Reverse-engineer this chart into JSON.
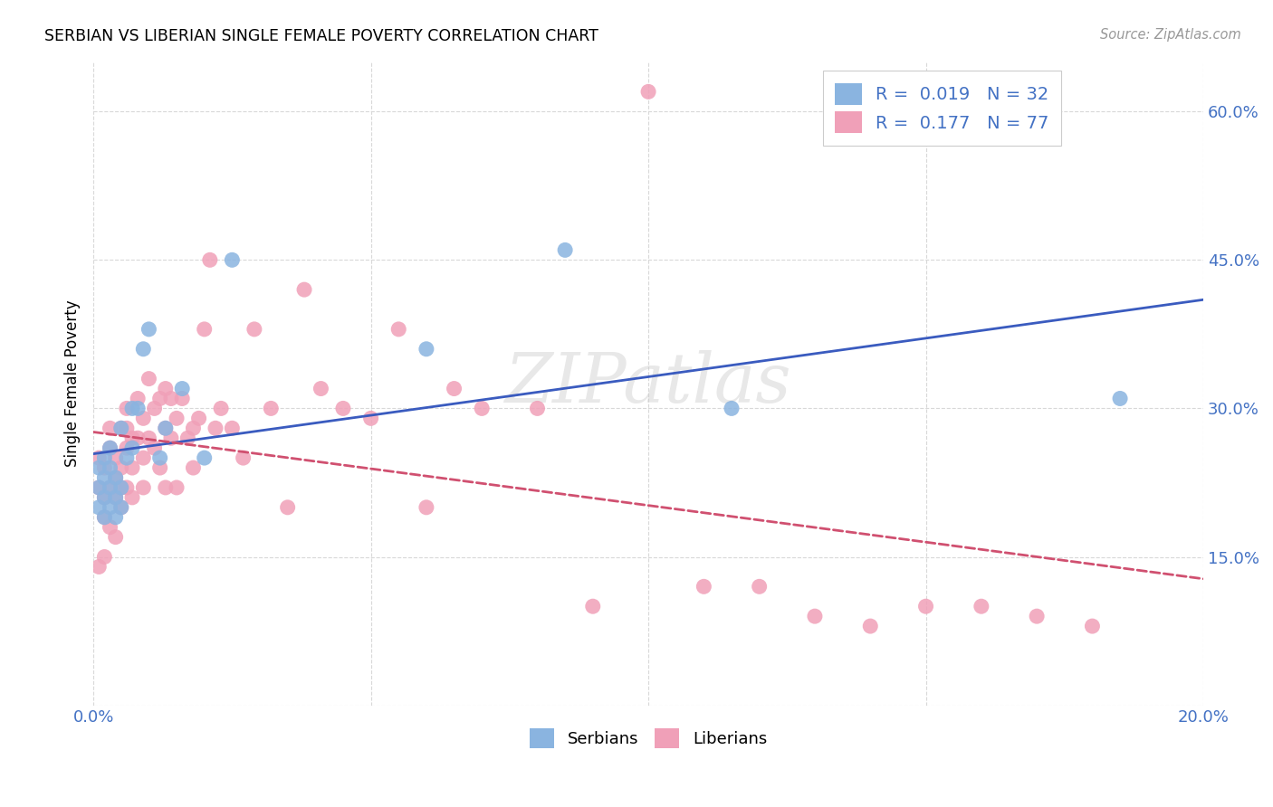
{
  "title": "SERBIAN VS LIBERIAN SINGLE FEMALE POVERTY CORRELATION CHART",
  "source": "Source: ZipAtlas.com",
  "ylabel": "Single Female Poverty",
  "xlim": [
    0.0,
    0.2
  ],
  "ylim": [
    0.0,
    0.65
  ],
  "serbian_color": "#8ab4e0",
  "liberian_color": "#f0a0b8",
  "serbian_line_color": "#3a5bbf",
  "liberian_line_color": "#d05070",
  "r_serbian": 0.019,
  "n_serbian": 32,
  "r_liberian": 0.177,
  "n_liberian": 77,
  "watermark": "ZIPatlas",
  "background_color": "#ffffff",
  "grid_color": "#d8d8d8",
  "serbian_x": [
    0.001,
    0.001,
    0.001,
    0.002,
    0.002,
    0.002,
    0.002,
    0.003,
    0.003,
    0.003,
    0.003,
    0.004,
    0.004,
    0.004,
    0.005,
    0.005,
    0.005,
    0.006,
    0.007,
    0.007,
    0.008,
    0.009,
    0.01,
    0.012,
    0.013,
    0.016,
    0.02,
    0.025,
    0.06,
    0.085,
    0.115,
    0.185
  ],
  "serbian_y": [
    0.22,
    0.24,
    0.2,
    0.21,
    0.23,
    0.19,
    0.25,
    0.2,
    0.22,
    0.24,
    0.26,
    0.21,
    0.23,
    0.19,
    0.22,
    0.28,
    0.2,
    0.25,
    0.3,
    0.26,
    0.3,
    0.36,
    0.38,
    0.25,
    0.28,
    0.32,
    0.25,
    0.45,
    0.36,
    0.46,
    0.3,
    0.31
  ],
  "liberian_x": [
    0.001,
    0.001,
    0.001,
    0.002,
    0.002,
    0.002,
    0.002,
    0.003,
    0.003,
    0.003,
    0.003,
    0.004,
    0.004,
    0.004,
    0.004,
    0.005,
    0.005,
    0.005,
    0.005,
    0.006,
    0.006,
    0.006,
    0.006,
    0.007,
    0.007,
    0.007,
    0.008,
    0.008,
    0.009,
    0.009,
    0.009,
    0.01,
    0.01,
    0.011,
    0.011,
    0.012,
    0.012,
    0.013,
    0.013,
    0.013,
    0.014,
    0.014,
    0.015,
    0.015,
    0.016,
    0.017,
    0.018,
    0.018,
    0.019,
    0.02,
    0.021,
    0.022,
    0.023,
    0.025,
    0.027,
    0.029,
    0.032,
    0.035,
    0.038,
    0.041,
    0.045,
    0.05,
    0.055,
    0.06,
    0.065,
    0.07,
    0.08,
    0.09,
    0.1,
    0.11,
    0.12,
    0.13,
    0.14,
    0.15,
    0.16,
    0.17,
    0.18
  ],
  "liberian_y": [
    0.25,
    0.22,
    0.14,
    0.19,
    0.24,
    0.21,
    0.15,
    0.26,
    0.22,
    0.18,
    0.28,
    0.21,
    0.25,
    0.23,
    0.17,
    0.28,
    0.24,
    0.2,
    0.22,
    0.28,
    0.26,
    0.3,
    0.22,
    0.27,
    0.24,
    0.21,
    0.31,
    0.27,
    0.25,
    0.29,
    0.22,
    0.33,
    0.27,
    0.3,
    0.26,
    0.31,
    0.24,
    0.32,
    0.28,
    0.22,
    0.31,
    0.27,
    0.29,
    0.22,
    0.31,
    0.27,
    0.28,
    0.24,
    0.29,
    0.38,
    0.45,
    0.28,
    0.3,
    0.28,
    0.25,
    0.38,
    0.3,
    0.2,
    0.42,
    0.32,
    0.3,
    0.29,
    0.38,
    0.2,
    0.32,
    0.3,
    0.3,
    0.1,
    0.62,
    0.12,
    0.12,
    0.09,
    0.08,
    0.1,
    0.1,
    0.09,
    0.08
  ]
}
